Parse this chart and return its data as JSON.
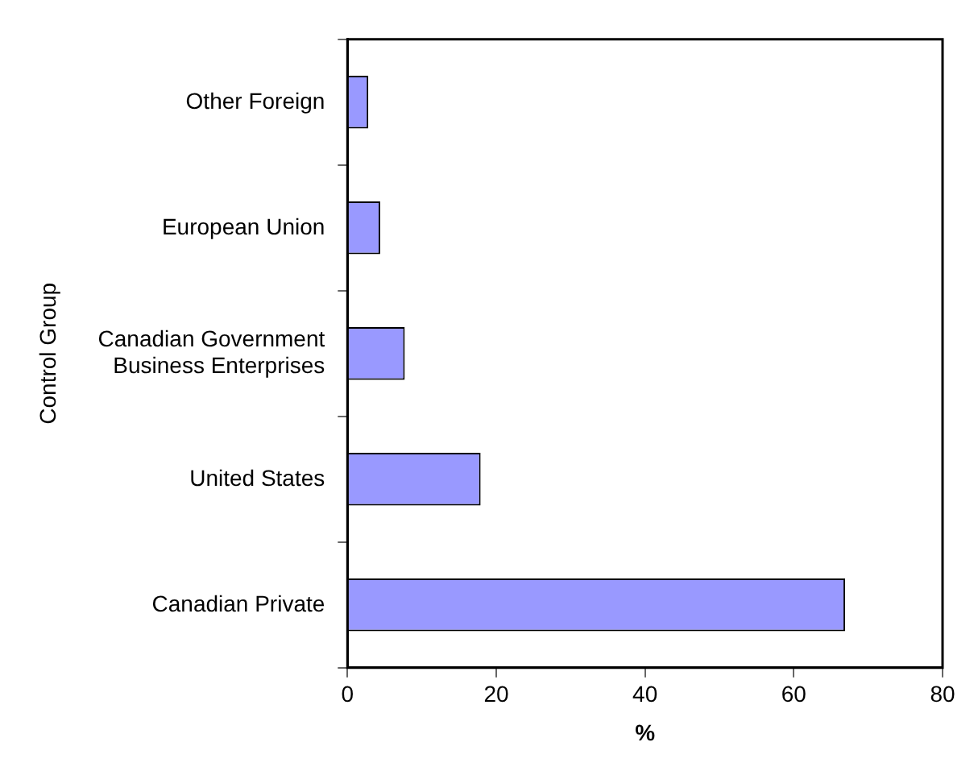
{
  "chart_data": {
    "type": "bar",
    "orientation": "horizontal",
    "xlabel": "%",
    "ylabel": "Control Group",
    "categories": [
      "Other Foreign",
      "European Union",
      "Canadian Government Business Enterprises",
      "United States",
      "Canadian Private"
    ],
    "values": [
      2.8,
      4.4,
      7.7,
      17.9,
      66.9
    ],
    "color": "#9999ff",
    "xlim": [
      0,
      80
    ],
    "xticks": [
      0,
      20,
      40,
      60,
      80
    ],
    "grid": false,
    "legend": false
  }
}
